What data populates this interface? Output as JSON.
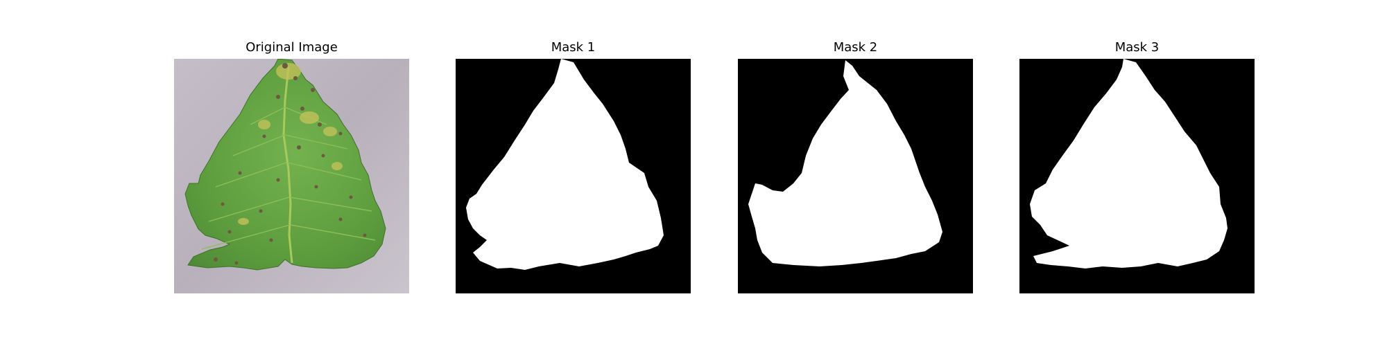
{
  "figure": {
    "panels": [
      {
        "title": "Original Image",
        "kind": "photo"
      },
      {
        "title": "Mask 1",
        "kind": "mask"
      },
      {
        "title": "Mask 2",
        "kind": "mask"
      },
      {
        "title": "Mask 3",
        "kind": "mask"
      }
    ]
  },
  "colors": {
    "background": "#ffffff",
    "mask_background": "#000000",
    "mask_foreground": "#ffffff",
    "photo_background": "#b9b2bc",
    "leaf_green": "#66a844",
    "leaf_dark_green": "#3f7f2c",
    "leaf_yellow": "#b9bd54",
    "lesion_brown": "#6f5a3f"
  }
}
